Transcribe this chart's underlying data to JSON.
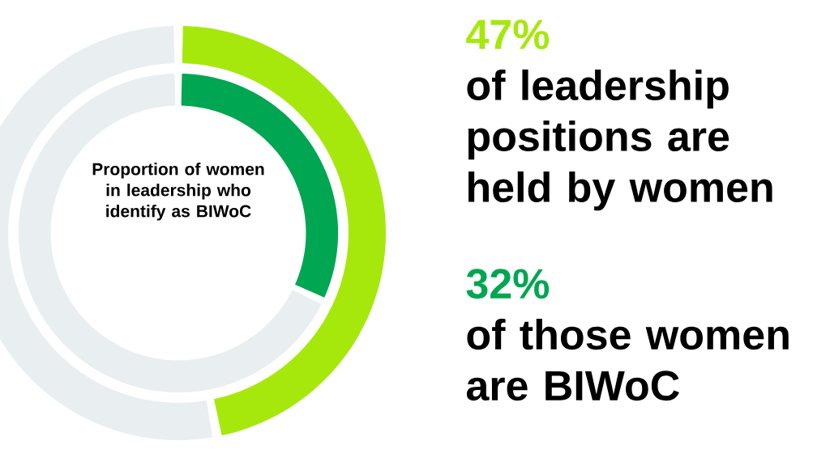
{
  "chart_data": [
    {
      "type": "donut",
      "categories": [
        null,
        null
      ],
      "values": [
        47,
        53
      ],
      "colors": [
        "#a6e80c",
        "#e9eef1"
      ],
      "value_labels": [
        "47%",
        null
      ],
      "annotations": [
        "of leadership positions are held by women"
      ]
    },
    {
      "type": "donut",
      "title": "Proportion of women in leadership who identify as BIWoC",
      "categories": [
        null,
        null
      ],
      "values": [
        32,
        68
      ],
      "colors": [
        "#00a651",
        "#e9eef1"
      ],
      "value_labels": [
        "32%",
        null
      ],
      "annotations": [
        "of those women are BIWoC"
      ]
    }
  ]
}
